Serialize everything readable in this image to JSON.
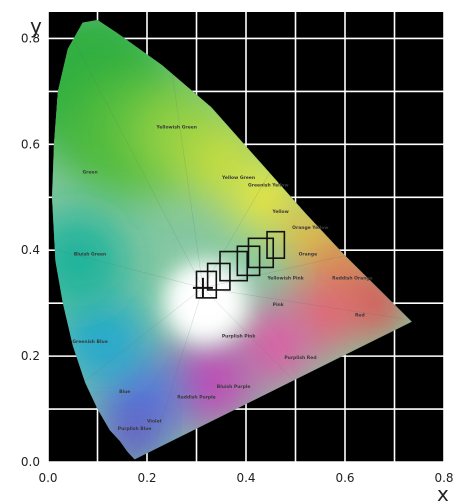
{
  "chart_data": {
    "type": "scatter",
    "title": "",
    "xlabel": "x",
    "ylabel": "y",
    "xlim": [
      0,
      0.8
    ],
    "ylim": [
      0,
      0.85
    ],
    "x_ticks": [
      "0.0",
      "0.2",
      "0.4",
      "0.6",
      "0.8"
    ],
    "y_ticks": [
      "0.0",
      "0.2",
      "0.4",
      "0.6",
      "0.8"
    ],
    "grid": true,
    "background": "#000000",
    "grid_color": "#ffffff",
    "marker_color": "#111111",
    "locus": [
      [
        0.175,
        0.005
      ],
      [
        0.17,
        0.01
      ],
      [
        0.16,
        0.02
      ],
      [
        0.145,
        0.04
      ],
      [
        0.125,
        0.06
      ],
      [
        0.1,
        0.1
      ],
      [
        0.075,
        0.15
      ],
      [
        0.05,
        0.22
      ],
      [
        0.03,
        0.3
      ],
      [
        0.015,
        0.38
      ],
      [
        0.008,
        0.5
      ],
      [
        0.012,
        0.6
      ],
      [
        0.02,
        0.7
      ],
      [
        0.04,
        0.78
      ],
      [
        0.07,
        0.83
      ],
      [
        0.1,
        0.835
      ],
      [
        0.14,
        0.81
      ],
      [
        0.23,
        0.75
      ],
      [
        0.33,
        0.67
      ],
      [
        0.43,
        0.565
      ],
      [
        0.52,
        0.47
      ],
      [
        0.6,
        0.39
      ],
      [
        0.735,
        0.265
      ]
    ],
    "regions": [
      {
        "label": "Yellowish Green",
        "x": 0.26,
        "y": 0.63
      },
      {
        "label": "Green",
        "x": 0.085,
        "y": 0.545
      },
      {
        "label": "Yellow Green",
        "x": 0.385,
        "y": 0.535
      },
      {
        "label": "Greenish Yellow",
        "x": 0.445,
        "y": 0.52
      },
      {
        "label": "Yellow",
        "x": 0.47,
        "y": 0.47
      },
      {
        "label": "Orange Yellow",
        "x": 0.53,
        "y": 0.44
      },
      {
        "label": "Orange",
        "x": 0.525,
        "y": 0.39
      },
      {
        "label": "Bluish Green",
        "x": 0.085,
        "y": 0.39
      },
      {
        "label": "Yellowish Pink",
        "x": 0.48,
        "y": 0.345
      },
      {
        "label": "Reddish Orange",
        "x": 0.615,
        "y": 0.345
      },
      {
        "label": "Pink",
        "x": 0.465,
        "y": 0.295
      },
      {
        "label": "Red",
        "x": 0.63,
        "y": 0.275
      },
      {
        "label": "Greenish Blue",
        "x": 0.085,
        "y": 0.225
      },
      {
        "label": "Purplish Pink",
        "x": 0.385,
        "y": 0.235
      },
      {
        "label": "Purplish Red",
        "x": 0.51,
        "y": 0.195
      },
      {
        "label": "Blue",
        "x": 0.155,
        "y": 0.13
      },
      {
        "label": "Bluish Purple",
        "x": 0.375,
        "y": 0.14
      },
      {
        "label": "Reddish Purple",
        "x": 0.3,
        "y": 0.12
      },
      {
        "label": "Purplish Blue",
        "x": 0.175,
        "y": 0.06
      },
      {
        "label": "Violet",
        "x": 0.215,
        "y": 0.075
      }
    ],
    "white_point": {
      "x": 0.313,
      "y": 0.329
    },
    "series": [
      {
        "marker": "square",
        "points": [
          {
            "x": 0.32,
            "y": 0.335,
            "w": 0.04,
            "h": 0.05
          },
          {
            "x": 0.345,
            "y": 0.35,
            "w": 0.045,
            "h": 0.05
          },
          {
            "x": 0.375,
            "y": 0.37,
            "w": 0.055,
            "h": 0.055
          },
          {
            "x": 0.405,
            "y": 0.38,
            "w": 0.045,
            "h": 0.055
          },
          {
            "x": 0.43,
            "y": 0.395,
            "w": 0.05,
            "h": 0.055
          },
          {
            "x": 0.46,
            "y": 0.41,
            "w": 0.035,
            "h": 0.05
          }
        ]
      }
    ]
  }
}
